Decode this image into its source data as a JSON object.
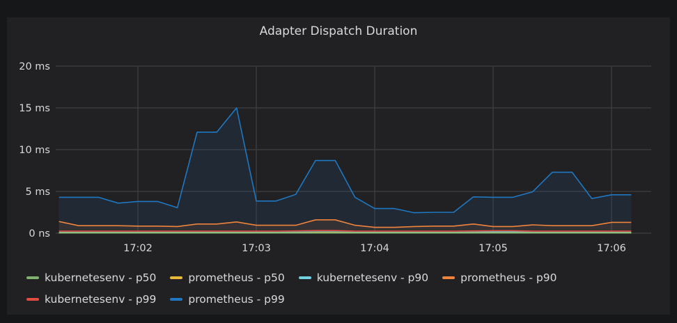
{
  "chart_data": {
    "type": "line",
    "title": "Adapter Dispatch Duration",
    "xlabel": "",
    "ylabel": "",
    "ylim": [
      0,
      20
    ],
    "y_ticks": [
      "0 ns",
      "5 ms",
      "10 ms",
      "15 ms",
      "20 ms"
    ],
    "y_tick_values": [
      0,
      5,
      10,
      15,
      20
    ],
    "x_ticks": [
      "17:02",
      "17:03",
      "17:04",
      "17:05",
      "17:06"
    ],
    "x_unit": "time",
    "y_unit": "ms",
    "grid": true,
    "legend_position": "bottom",
    "x": [
      "17:01:20",
      "17:01:30",
      "17:01:40",
      "17:01:50",
      "17:02:00",
      "17:02:10",
      "17:02:20",
      "17:02:30",
      "17:02:40",
      "17:02:50",
      "17:03:00",
      "17:03:10",
      "17:03:20",
      "17:03:30",
      "17:03:40",
      "17:03:50",
      "17:04:00",
      "17:04:10",
      "17:04:20",
      "17:04:30",
      "17:04:40",
      "17:04:50",
      "17:05:00",
      "17:05:10",
      "17:05:20",
      "17:05:30",
      "17:05:40",
      "17:05:50",
      "17:06:00",
      "17:06:10"
    ],
    "series": [
      {
        "name": "kubernetesenv - p50",
        "color": "#7eb26d",
        "values": [
          0.02,
          0.02,
          0.02,
          0.02,
          0.02,
          0.02,
          0.02,
          0.02,
          0.02,
          0.02,
          0.02,
          0.02,
          0.02,
          0.02,
          0.02,
          0.02,
          0.02,
          0.02,
          0.02,
          0.02,
          0.02,
          0.02,
          0.02,
          0.02,
          0.02,
          0.02,
          0.02,
          0.02,
          0.02,
          0.02
        ]
      },
      {
        "name": "prometheus - p50",
        "color": "#eab839",
        "values": [
          0.05,
          0.05,
          0.05,
          0.05,
          0.05,
          0.05,
          0.05,
          0.05,
          0.05,
          0.05,
          0.05,
          0.05,
          0.05,
          0.08,
          0.08,
          0.05,
          0.05,
          0.05,
          0.05,
          0.05,
          0.05,
          0.05,
          0.05,
          0.05,
          0.05,
          0.05,
          0.05,
          0.05,
          0.05,
          0.05
        ]
      },
      {
        "name": "kubernetesenv - p90",
        "color": "#6ed0e0",
        "values": [
          0.1,
          0.1,
          0.1,
          0.1,
          0.1,
          0.1,
          0.1,
          0.1,
          0.1,
          0.1,
          0.1,
          0.1,
          0.12,
          0.15,
          0.15,
          0.1,
          0.1,
          0.1,
          0.1,
          0.1,
          0.1,
          0.12,
          0.15,
          0.15,
          0.1,
          0.1,
          0.1,
          0.1,
          0.1,
          0.1
        ]
      },
      {
        "name": "prometheus - p90",
        "color": "#ef843c",
        "values": [
          1.4,
          0.9,
          0.9,
          0.9,
          0.85,
          0.85,
          0.8,
          1.1,
          1.1,
          1.35,
          0.95,
          0.95,
          0.95,
          1.6,
          1.6,
          0.95,
          0.7,
          0.7,
          0.8,
          0.85,
          0.85,
          1.1,
          0.8,
          0.8,
          1.0,
          0.9,
          0.9,
          0.9,
          1.3,
          1.3
        ]
      },
      {
        "name": "kubernetesenv - p99",
        "color": "#e24d42",
        "values": [
          0.25,
          0.25,
          0.25,
          0.25,
          0.25,
          0.25,
          0.25,
          0.25,
          0.25,
          0.25,
          0.25,
          0.25,
          0.28,
          0.32,
          0.32,
          0.25,
          0.25,
          0.25,
          0.25,
          0.25,
          0.25,
          0.28,
          0.3,
          0.3,
          0.25,
          0.25,
          0.25,
          0.25,
          0.25,
          0.25
        ]
      },
      {
        "name": "prometheus - p99",
        "color": "#1f78c1",
        "values": [
          4.3,
          4.3,
          4.3,
          3.6,
          3.8,
          3.8,
          3.05,
          12.1,
          12.1,
          15.0,
          3.85,
          3.85,
          4.65,
          8.7,
          8.7,
          4.3,
          2.95,
          2.95,
          2.45,
          2.5,
          2.5,
          4.35,
          4.3,
          4.3,
          4.95,
          7.3,
          7.3,
          4.15,
          4.6,
          4.6
        ]
      }
    ]
  }
}
